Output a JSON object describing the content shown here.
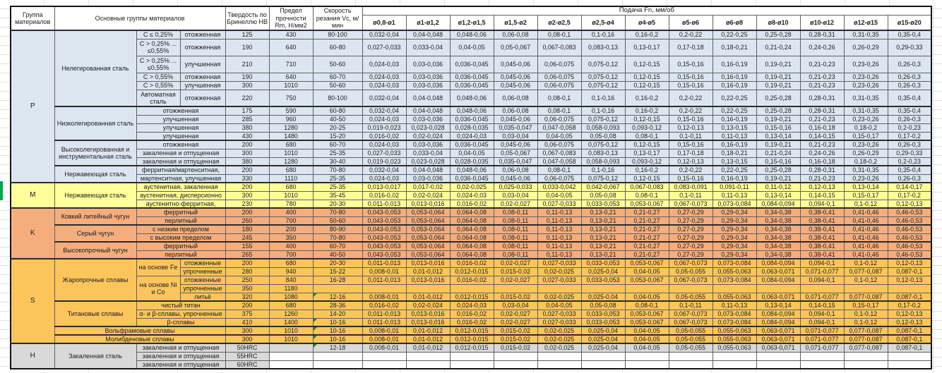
{
  "header": {
    "col_group": "Группа материалов",
    "col_main": "Основные группы материалов",
    "col_hb": "Твердость по Бринеллю HB",
    "col_rm": "Предел прочности Rm, Н/мм2",
    "col_vc": "Скорость резания Vc, м/мин",
    "col_feed": "Подача Fn, мм/об",
    "feed_cols": [
      "ø0,8-ø1",
      "ø1-ø1,2",
      "ø1,2-ø1,5",
      "ø1,5-ø2",
      "ø2-ø2,5",
      "ø2,5-ø4",
      "ø4-ø5",
      "ø5-ø6",
      "ø6-ø8",
      "ø8-ø10",
      "ø10-ø12",
      "ø12-ø15",
      "ø15-ø20"
    ]
  },
  "colors": {
    "section_p": "#dce6f1",
    "section_m": "#ffff99",
    "section_k": "#f4ae7d",
    "section_s": "#fbc55c",
    "section_h": "#d9d9d9",
    "comment_marker": "#1e8a1e",
    "margin_mark": "#00a651"
  },
  "feed_patterns": {
    "A": [
      "0,032-0,04",
      "0,04-0,048",
      "0,048-0,06",
      "0,06-0,08",
      "0,08-0,1",
      "0,1-0,16",
      "0,16-0,2",
      "0,2-0,22",
      "0,22-0,25",
      "0,25-0,28",
      "0,28-0,31",
      "0,31-0,35",
      "0,35-0,4"
    ],
    "B": [
      "0,027-0,033",
      "0,033-0,04",
      "0,04-0,05",
      "0,05-0,067",
      "0,067-0,083",
      "0,083-0,13",
      "0,13-0,17",
      "0,17-0,18",
      "0,18-0,21",
      "0,21-0,24",
      "0,24-0,26",
      "0,26-0,29",
      "0,29-0,33"
    ],
    "C": [
      "0,024-0,03",
      "0,03-0,036",
      "0,036-0,045",
      "0,045-0,06",
      "0,06-0,075",
      "0,075-0,12",
      "0,12-0,15",
      "0,15-0,16",
      "0,16-0,19",
      "0,19-0,21",
      "0,21-0,23",
      "0,23-0,26",
      "0,26-0,3"
    ],
    "D": [
      "0,019-0,023",
      "0,023-0,028",
      "0,028-0,035",
      "0,035-0,047",
      "0,047-0,058",
      "0,058-0,093",
      "0,093-0,12",
      "0,12-0,13",
      "0,13-0,15",
      "0,15-0,16",
      "0,16-0,18",
      "0,18-0,2",
      "0,2-0,23"
    ],
    "E": [
      "0,016-0,02",
      "0,02-0,024",
      "0,024-0,03",
      "0,03-0,04",
      "0,04-0,05",
      "0,05-0,08",
      "0,08-0,1",
      "0,1-0,11",
      "0,11-0,13",
      "0,13-0,14",
      "0,14-0,15",
      "0,15-0,17",
      "0,17-0,2"
    ],
    "F": [
      "0,013-0,017",
      "0,017-0,02",
      "0,02-0,025",
      "0,025-0,033",
      "0,033-0,042",
      "0,042-0,067",
      "0,067-0,083",
      "0,083-0,091",
      "0,091-0,11",
      "0,11-0,12",
      "0,12-0,13",
      "0,13-0,14",
      "0,14-0,17"
    ],
    "G": [
      "0,011-0,013",
      "0,013-0,016",
      "0,016-0,02",
      "0,02-0,027",
      "0,027-0,033",
      "0,033-0,053",
      "0,053-0,067",
      "0,067-0,073",
      "0,073-0,084",
      "0,084-0,094",
      "0,094-0,1",
      "0,1-0,12",
      "0,12-0,13"
    ],
    "H": [
      "0,043-0,053",
      "0,053-0,064",
      "0,064-0,08",
      "0,08-0,11",
      "0,11-0,13",
      "0,13-0,21",
      "0,21-0,27",
      "0,27-0,29",
      "0,29-0,34",
      "0,34-0,38",
      "0,38-0,41",
      "0,41-0,46",
      "0,46-0,53"
    ],
    "I": [
      "0,008-0,01",
      "0,01-0,012",
      "0,012-0,015",
      "0,015-0,02",
      "0,02-0,025",
      "0,025-0,04",
      "0,04-0,05",
      "0,05-0,055",
      "0,055-0,063",
      "0,063-0,071",
      "0,071-0,077",
      "0,077-0,087",
      "0,087-0,1"
    ],
    "blank": [
      "",
      "",
      "",
      "",
      "",
      "",
      "",
      "",
      "",
      "",
      "",
      "",
      ""
    ]
  },
  "sections": [
    {
      "letter": "P",
      "color": "#dce6f1",
      "groups": [
        {
          "name": "Нелегированная сталь",
          "rows": [
            {
              "cells": [
                {
                  "t": "C ≤ 0,25%"
                },
                {
                  "t": "отожженная"
                }
              ],
              "hb": "125",
              "rm": "430",
              "vc": "80-100",
              "feed": "A"
            },
            {
              "cells": [
                {
                  "t": "C > 0,25% ... ≤0,55%"
                },
                {
                  "t": "отожженная"
                }
              ],
              "hb": "190",
              "rm": "640",
              "vc": "60-80",
              "feed": "B",
              "tall": true
            },
            {
              "cells": [
                {
                  "t": "C > 0,25% ... ≤0,55%"
                },
                {
                  "t": "улучшенная"
                }
              ],
              "hb": "210",
              "rm": "710",
              "vc": "50-60",
              "feed": "C",
              "tall": true
            },
            {
              "cells": [
                {
                  "t": "C > 0,55%"
                },
                {
                  "t": "отожженная"
                }
              ],
              "hb": "190",
              "rm": "640",
              "vc": "60-70",
              "feed": "C"
            },
            {
              "cells": [
                {
                  "t": "C > 0,55%"
                },
                {
                  "t": "улучшенная"
                }
              ],
              "hb": "300",
              "rm": "1010",
              "vc": "50-60",
              "feed": "C"
            },
            {
              "cells": [
                {
                  "t": "Автоматная сталь"
                },
                {
                  "t": "отожженная"
                }
              ],
              "hb": "220",
              "rm": "750",
              "vc": "80-100",
              "feed": "A",
              "tall": true
            }
          ]
        },
        {
          "name": "Низколегированная сталь",
          "rows": [
            {
              "cells": [
                {
                  "t": "отожженная",
                  "cs": 2
                }
              ],
              "hb": "175",
              "rm": "590",
              "vc": "60-80",
              "feed": "A"
            },
            {
              "cells": [
                {
                  "t": "улучшенная",
                  "cs": 2
                }
              ],
              "hb": "285",
              "rm": "960",
              "vc": "40-50",
              "feed": "C"
            },
            {
              "cells": [
                {
                  "t": "улучшенная",
                  "cs": 2
                }
              ],
              "hb": "380",
              "rm": "1280",
              "vc": "20-25",
              "feed": "D"
            },
            {
              "cells": [
                {
                  "t": "улучшенная",
                  "cs": 2
                }
              ],
              "hb": "430",
              "rm": "1480",
              "vc": "15-20",
              "feed": "E"
            }
          ]
        },
        {
          "name": "Высоколегированная и инструментальная сталь",
          "rows": [
            {
              "cells": [
                {
                  "t": "отожженная",
                  "cs": 2
                }
              ],
              "hb": "200",
              "rm": "680",
              "vc": "60-70",
              "feed": "C"
            },
            {
              "cells": [
                {
                  "t": "закаленная и отпущенная",
                  "cs": 2
                }
              ],
              "hb": "300",
              "rm": "1010",
              "vc": "25-35",
              "feed": "B"
            },
            {
              "cells": [
                {
                  "t": "закаленная и отпущенная",
                  "cs": 2
                }
              ],
              "hb": "380",
              "rm": "1280",
              "vc": "30-40",
              "feed": "D"
            }
          ]
        },
        {
          "name": "Нержавеющая сталь",
          "rows": [
            {
              "cells": [
                {
                  "t": "ферритная/мартенситная,",
                  "cs": 2
                }
              ],
              "hb": "200",
              "rm": "680",
              "vc": "70-80",
              "feed": "A"
            },
            {
              "cells": [
                {
                  "t": "мартенситная, улучшенная",
                  "cs": 2
                }
              ],
              "hb": "330",
              "rm": "1110",
              "vc": "25-35",
              "feed": "C"
            }
          ]
        }
      ]
    },
    {
      "letter": "M",
      "color": "#ffff99",
      "groups": [
        {
          "name": "Нержавеющая сталь",
          "rows": [
            {
              "cells": [
                {
                  "t": "аустенитная, закаленная",
                  "cs": 2
                }
              ],
              "hb": "200",
              "rm": "680",
              "vc": "25-35",
              "feed": "F"
            },
            {
              "cells": [
                {
                  "t": "аустенитная, дисперсионно",
                  "cs": 2
                }
              ],
              "hb": "300",
              "rm": "1010",
              "vc": "35-45",
              "feed": "E"
            },
            {
              "cells": [
                {
                  "t": "аустенитно-ферритная,",
                  "cs": 2
                }
              ],
              "hb": "230",
              "rm": "780",
              "vc": "20-30",
              "feed": "G"
            }
          ]
        }
      ]
    },
    {
      "letter": "K",
      "color": "#f4ae7d",
      "groups": [
        {
          "name": "Ковкий литейный чугун",
          "rows": [
            {
              "cells": [
                {
                  "t": "ферритный",
                  "cs": 2
                }
              ],
              "hb": "200",
              "rm": "400",
              "vc": "70-80",
              "feed": "H"
            },
            {
              "cells": [
                {
                  "t": "перлитный",
                  "cs": 2
                }
              ],
              "hb": "260",
              "rm": "700",
              "vc": "50-60",
              "feed": "H"
            }
          ]
        },
        {
          "name": "Серый чугун",
          "rows": [
            {
              "cells": [
                {
                  "t": "с низким пределом",
                  "cs": 2
                }
              ],
              "hb": "180",
              "rm": "200",
              "vc": "80-90",
              "feed": "H"
            },
            {
              "cells": [
                {
                  "t": "с высоким пределом",
                  "cs": 2
                }
              ],
              "hb": "245",
              "rm": "350",
              "vc": "70-80",
              "feed": "H"
            }
          ]
        },
        {
          "name": "Высокопрочный чугун",
          "rows": [
            {
              "cells": [
                {
                  "t": "ферритный",
                  "cs": 2
                }
              ],
              "hb": "155",
              "rm": "400",
              "vc": "60-70",
              "feed": "H"
            },
            {
              "cells": [
                {
                  "t": "перлитный",
                  "cs": 2
                }
              ],
              "hb": "265",
              "rm": "700",
              "vc": "40-50",
              "feed": "H"
            }
          ]
        }
      ]
    },
    {
      "letter": "S",
      "color": "#fbc55c",
      "groups": [
        {
          "name": "Жаропрочные сплавы",
          "rows": [
            {
              "cells": [
                {
                  "t": "на основе Fe",
                  "rs": 2
                },
                {
                  "t": "отожженные"
                }
              ],
              "hb": "200",
              "rm": "680",
              "vc": "20-30",
              "feed": "G"
            },
            {
              "cells": [
                {
                  "t": "упрочненные"
                }
              ],
              "hb": "280",
              "rm": "940",
              "vc": "15-22",
              "feed": "I"
            },
            {
              "cells": [
                {
                  "t": "на основе Ni и Co",
                  "rs": 3
                },
                {
                  "t": "отожженные"
                }
              ],
              "hb": "250",
              "rm": "840",
              "vc": "16-28",
              "feed": "G"
            },
            {
              "cells": [
                {
                  "t": "упрочненные"
                }
              ],
              "hb": "350",
              "rm": "1180",
              "vc": "",
              "feed": "blank"
            },
            {
              "cells": [
                {
                  "t": "литьё"
                }
              ],
              "hb": "320",
              "rm": "1080",
              "vc": "12-16",
              "feed": "I",
              "tri": true
            }
          ]
        },
        {
          "name": "Титановые сплавы",
          "rows": [
            {
              "cells": [
                {
                  "t": "чистый титан",
                  "cs": 2
                }
              ],
              "hb": "200",
              "rm": "680",
              "vc": "28-36",
              "feed": "E"
            },
            {
              "cells": [
                {
                  "t": "α- и β-сплавы, упрочненные",
                  "cs": 2
                }
              ],
              "hb": "375",
              "rm": "1260",
              "vc": "14-20",
              "feed": "G"
            },
            {
              "cells": [
                {
                  "t": "β-сплавы",
                  "cs": 2
                }
              ],
              "hb": "410",
              "rm": "1400",
              "vc": "10-16",
              "feed": "G",
              "tri": true
            }
          ]
        },
        {
          "name": "Вольфрамовые сплавы",
          "span": 3,
          "rows": [
            {
              "cells": [],
              "hb": "300",
              "rm": "1010",
              "vc": "10-16",
              "feed": "I",
              "tri": true
            }
          ]
        },
        {
          "name": "Молибденовые сплавы",
          "span": 3,
          "rows": [
            {
              "cells": [],
              "hb": "300",
              "rm": "1010",
              "vc": "10-16",
              "feed": "I",
              "tri": true
            }
          ]
        }
      ]
    },
    {
      "letter": "H",
      "color": "#d9d9d9",
      "groups": [
        {
          "name": "Закаленная сталь",
          "rows": [
            {
              "cells": [
                {
                  "t": "закаленная и отпущенная",
                  "cs": 2
                }
              ],
              "hb": "50HRC",
              "rm": "",
              "vc": "12-18",
              "feed": "I",
              "tri": true
            },
            {
              "cells": [
                {
                  "t": "закаленная и отпущенная",
                  "cs": 2
                }
              ],
              "hb": "55HRC",
              "rm": "",
              "vc": "",
              "feed": "blank",
              "white": true
            },
            {
              "cells": [
                {
                  "t": "закаленная и отпущенная",
                  "cs": 2
                }
              ],
              "hb": "60HRC",
              "rm": "",
              "vc": "",
              "feed": "blank",
              "white": true
            }
          ]
        }
      ]
    }
  ]
}
